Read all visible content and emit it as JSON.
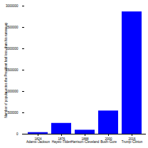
{
  "chart_data": {
    "type": "bar",
    "y_label": "Number of popular votes the President had less, than his runner-up",
    "categories": [
      "1824\nAdams–Jackson",
      "1876\nHayes–Tilden",
      "1888\nHarrison–Cleveland",
      "2000\nBush–Gore",
      "2016\nTrump–Clinton"
    ],
    "values": [
      38000,
      254000,
      94000,
      544000,
      2865000
    ],
    "color": "#0000ff",
    "ylim": [
      0,
      3000000
    ],
    "yticks": [
      0,
      500000,
      1000000,
      1500000,
      2000000,
      2500000,
      3000000
    ],
    "grid": false
  }
}
